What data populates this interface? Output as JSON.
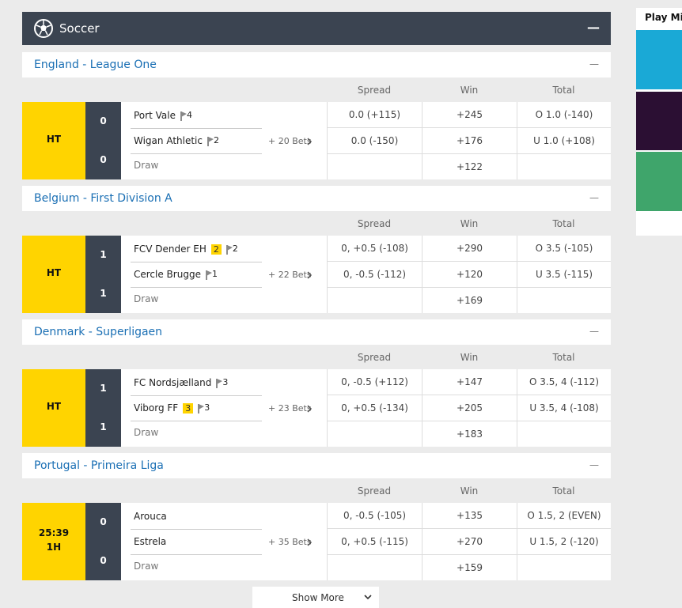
{
  "header": {
    "title": "Soccer",
    "collapse": "—"
  },
  "leagues": [
    {
      "name": "England - League One",
      "collapse": "—",
      "columns": [
        "Spread",
        "Win",
        "Total"
      ],
      "match": {
        "status": [
          "HT"
        ],
        "scores": [
          0,
          0
        ],
        "teams": [
          {
            "name": "Port Vale",
            "badges": [
              {
                "type": "corners",
                "value": 4
              }
            ]
          },
          {
            "name": "Wigan Athletic",
            "badges": [
              {
                "type": "corners",
                "value": 2
              }
            ]
          }
        ],
        "draw": "Draw",
        "more_bets": "+ 20 Bets",
        "spread": [
          "0.0 (+115)",
          "0.0 (-150)"
        ],
        "win": [
          "+245",
          "+176",
          "+122"
        ],
        "total": [
          "O 1.0 (-140)",
          "U 1.0 (+108)"
        ]
      }
    },
    {
      "name": "Belgium - First Division A",
      "collapse": "—",
      "columns": [
        "Spread",
        "Win",
        "Total"
      ],
      "match": {
        "status": [
          "HT"
        ],
        "scores": [
          1,
          1
        ],
        "teams": [
          {
            "name": "FCV Dender EH",
            "badges": [
              {
                "type": "card",
                "value": 2
              },
              {
                "type": "corners",
                "value": 2
              }
            ]
          },
          {
            "name": "Cercle Brugge",
            "badges": [
              {
                "type": "corners",
                "value": 1
              }
            ]
          }
        ],
        "draw": "Draw",
        "more_bets": "+ 22 Bets",
        "spread": [
          "0, +0.5 (-108)",
          "0, -0.5 (-112)"
        ],
        "win": [
          "+290",
          "+120",
          "+169"
        ],
        "total": [
          "O 3.5 (-105)",
          "U 3.5 (-115)"
        ]
      }
    },
    {
      "name": "Denmark - Superligaen",
      "collapse": "—",
      "columns": [
        "Spread",
        "Win",
        "Total"
      ],
      "match": {
        "status": [
          "HT"
        ],
        "scores": [
          1,
          1
        ],
        "teams": [
          {
            "name": "FC Nordsjælland",
            "badges": [
              {
                "type": "corners",
                "value": 3
              }
            ]
          },
          {
            "name": "Viborg FF",
            "badges": [
              {
                "type": "card",
                "value": 3
              },
              {
                "type": "corners",
                "value": 3
              }
            ]
          }
        ],
        "draw": "Draw",
        "more_bets": "+ 23 Bets",
        "spread": [
          "0, -0.5 (+112)",
          "0, +0.5 (-134)"
        ],
        "win": [
          "+147",
          "+205",
          "+183"
        ],
        "total": [
          "O 3.5, 4 (-112)",
          "U 3.5, 4 (-108)"
        ]
      }
    },
    {
      "name": "Portugal - Primeira Liga",
      "collapse": "—",
      "columns": [
        "Spread",
        "Win",
        "Total"
      ],
      "match": {
        "status": [
          "25:39",
          "1H"
        ],
        "scores": [
          0,
          0
        ],
        "teams": [
          {
            "name": "Arouca",
            "badges": []
          },
          {
            "name": "Estrela",
            "badges": []
          }
        ],
        "draw": "Draw",
        "more_bets": "+ 35 Bets",
        "spread": [
          "0, -0.5 (-105)",
          "0, +0.5 (-115)"
        ],
        "win": [
          "+135",
          "+270",
          "+159"
        ],
        "total": [
          "O 1.5, 2 (EVEN)",
          "U 1.5, 2 (-120)"
        ]
      }
    }
  ],
  "show_more": "Show More",
  "sidebar": {
    "title": "Play Min"
  }
}
